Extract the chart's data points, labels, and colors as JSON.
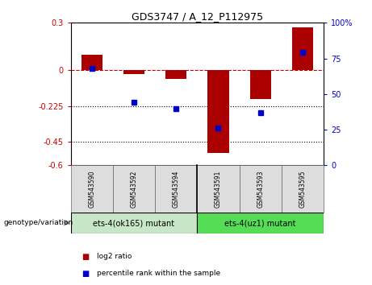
{
  "title": "GDS3747 / A_12_P112975",
  "samples": [
    "GSM543590",
    "GSM543592",
    "GSM543594",
    "GSM543591",
    "GSM543593",
    "GSM543595"
  ],
  "log2_ratio": [
    0.1,
    -0.022,
    -0.055,
    -0.52,
    -0.18,
    0.27
  ],
  "percentile_rank": [
    68,
    44,
    40,
    26,
    37,
    79
  ],
  "group1_label": "ets-4(ok165) mutant",
  "group2_label": "ets-4(uz1) mutant",
  "group1_color": "#c8e6c8",
  "group2_color": "#55dd55",
  "bar_color": "#aa0000",
  "dot_color": "#0000cc",
  "dashed_line_color": "#cc0000",
  "ylim_left": [
    -0.6,
    0.3
  ],
  "ylim_right": [
    0,
    100
  ],
  "yticks_left": [
    0.3,
    0,
    -0.225,
    -0.45,
    -0.6
  ],
  "ytick_labels_left": [
    "0.3",
    "0",
    "-0.225",
    "-0.45",
    "-0.6"
  ],
  "yticks_right": [
    100,
    75,
    50,
    25,
    0
  ],
  "ytick_labels_right": [
    "100%",
    "75",
    "50",
    "25",
    "0"
  ],
  "sample_box_color": "#dddddd",
  "plot_bg": "#ffffff",
  "legend_labels": [
    "log2 ratio",
    "percentile rank within the sample"
  ]
}
